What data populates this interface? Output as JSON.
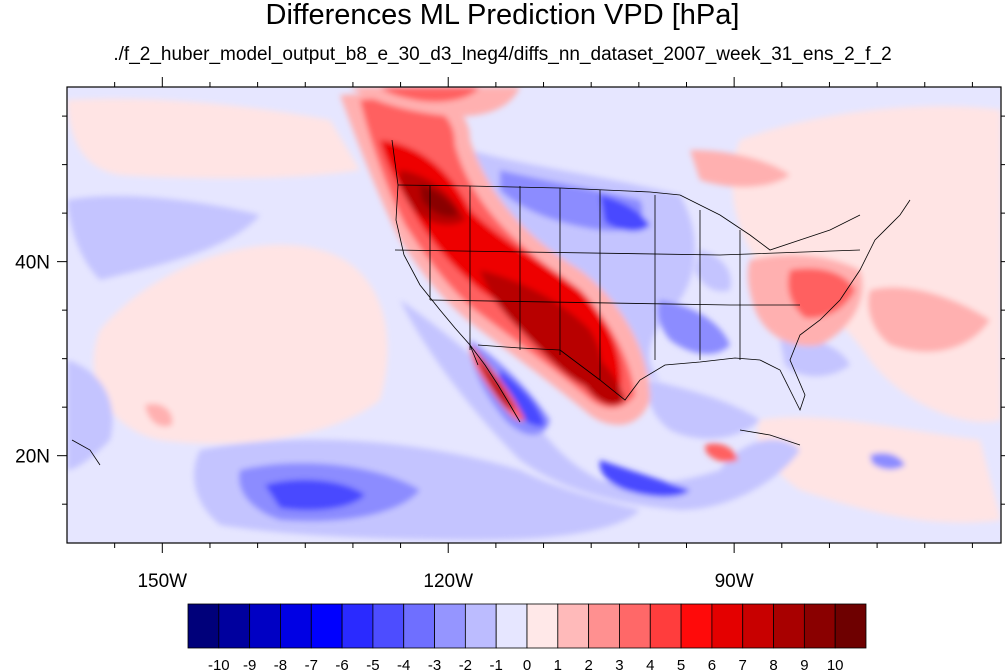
{
  "title": "Differences ML Prediction VPD [hPa]",
  "subtitle": "./f_2_huber_model_output_b8_e_30_d3_lneg4/diffs_nn_dataset_2007_week_31_ens_2_f_2",
  "map": {
    "projection": "cylindrical-equidistant",
    "lon_range": [
      -160,
      -62
    ],
    "lat_range": [
      11,
      58
    ],
    "lon_ticks": [
      {
        "label": "150W",
        "lon": -150
      },
      {
        "label": "120W",
        "lon": -120
      },
      {
        "label": "90W",
        "lon": -90
      }
    ],
    "lat_ticks": [
      {
        "label": "40N",
        "lat": 40
      },
      {
        "label": "20N",
        "lat": 20
      }
    ]
  },
  "colorbar": {
    "labels": [
      "-10",
      "-9",
      "-8",
      "-7",
      "-6",
      "-5",
      "-4",
      "-3",
      "-2",
      "-1",
      "0",
      "1",
      "2",
      "3",
      "4",
      "5",
      "6",
      "7",
      "8",
      "9",
      "10"
    ],
    "colors": [
      "#00007a",
      "#00009e",
      "#0000c4",
      "#0000e4",
      "#0000ff",
      "#2a2aff",
      "#4d4dff",
      "#6f6fff",
      "#9595ff",
      "#bcbcff",
      "#e6e6ff",
      "#ffe8e8",
      "#ffbaba",
      "#ff9090",
      "#ff6868",
      "#ff3d3d",
      "#ff0a0a",
      "#e40000",
      "#c80000",
      "#a80000",
      "#8a0000",
      "#6e0000"
    ]
  },
  "field_colors": {
    "neutral": "#e6e6ff",
    "light_red": "#ffe4e4",
    "red1": "#ffb0b0",
    "red2": "#ff6060",
    "red3": "#ee0000",
    "red4": "#b80000",
    "red5": "#8a0000",
    "blue1": "#c4c4ff",
    "blue2": "#8c8cff",
    "blue3": "#4a4aff",
    "blue4": "#0000d0"
  }
}
